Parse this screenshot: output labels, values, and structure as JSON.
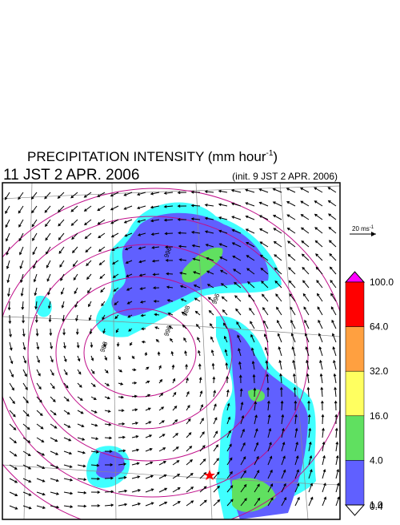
{
  "header": {
    "title": "PRECIPITATION INTENSITY (mm hour",
    "title_sup": "-1",
    "title_end": ")",
    "valid_time": "11 JST 2 APR. 2006",
    "init_time": "(init. 9 JST 2 APR. 2006)"
  },
  "wind_scale": {
    "label": "20 ms",
    "label_sup": "-1"
  },
  "colorbar": [
    {
      "label": "100.0",
      "color": "#ff00ff"
    },
    {
      "label": "64.0",
      "color": "#ff0000"
    },
    {
      "label": "32.0",
      "color": "#ffa040"
    },
    {
      "label": "16.0",
      "color": "#ffff60"
    },
    {
      "label": "4.0",
      "color": "#60e060"
    },
    {
      "label": "1.0",
      "color": "#6060ff"
    },
    {
      "label": "0.4",
      "color": "#40ffff"
    }
  ],
  "contour_labels": [
    "996",
    "988",
    "996",
    "988",
    "996"
  ]
}
